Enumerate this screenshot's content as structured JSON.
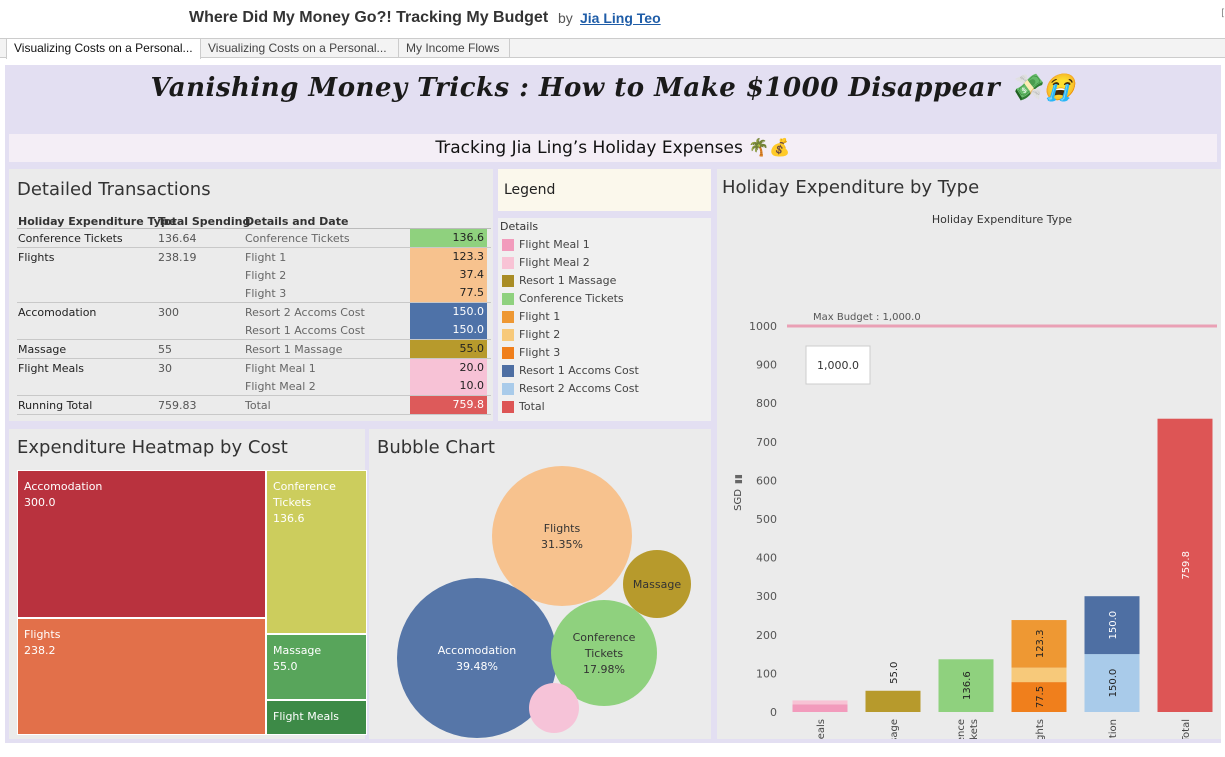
{
  "header": {
    "title": "Where Did My Money Go?! Tracking My Budget",
    "by": "by",
    "author": "Jia Ling Teo",
    "corner": "["
  },
  "tabs": [
    {
      "label": "Visualizing Costs on a Personal..."
    },
    {
      "label": "Visualizing Costs on a Personal..."
    },
    {
      "label": "My Income Flows"
    }
  ],
  "dashboard": {
    "title": "Vanishing Money Tricks : How to Make $1000 Disappear 💸😭",
    "subtitle": "Tracking Jia Ling’s Holiday Expenses 🌴💰"
  },
  "transactions": {
    "title": "Detailed Transactions",
    "headers": [
      "Holiday Expenditure Type",
      "Total Spending",
      "Details and Date"
    ],
    "groups": [
      {
        "type": "Conference Tickets",
        "total": "136.64",
        "rows": [
          {
            "detail": "Conference Tickets",
            "value": "136.6",
            "color": "#8fd17e"
          }
        ]
      },
      {
        "type": "Flights",
        "total": "238.19",
        "rows": [
          {
            "detail": "Flight 1",
            "value": "123.3",
            "color": "#f7c28e"
          },
          {
            "detail": "Flight 2",
            "value": "37.4",
            "color": "#f7c28e"
          },
          {
            "detail": "Flight 3",
            "value": "77.5",
            "color": "#f7c28e"
          }
        ]
      },
      {
        "type": "Accomodation",
        "total": "300",
        "rows": [
          {
            "detail": "Resort 2 Accoms Cost",
            "value": "150.0",
            "color": "#4e72a8"
          },
          {
            "detail": "Resort 1 Accoms Cost",
            "value": "150.0",
            "color": "#4e72a8"
          }
        ]
      },
      {
        "type": "Massage",
        "total": "55",
        "rows": [
          {
            "detail": "Resort 1 Massage",
            "value": "55.0",
            "color": "#b79a2c"
          }
        ]
      },
      {
        "type": "Flight Meals",
        "total": "30",
        "rows": [
          {
            "detail": "Flight Meal 1",
            "value": "20.0",
            "color": "#f7c2d6"
          },
          {
            "detail": "Flight Meal 2",
            "value": "10.0",
            "color": "#f7c2d6"
          }
        ]
      },
      {
        "type": "Running Total",
        "total": "759.83",
        "rows": [
          {
            "detail": "Total",
            "value": "759.8",
            "color": "#dd5a5a"
          }
        ]
      }
    ]
  },
  "legend": {
    "title": "Legend",
    "subtitle": "Details",
    "items": [
      {
        "label": "Flight Meal 1",
        "color": "#f29bbc"
      },
      {
        "label": "Flight Meal 2",
        "color": "#f8c3d5"
      },
      {
        "label": "Resort 1 Massage",
        "color": "#a98c25"
      },
      {
        "label": "Conference Tickets",
        "color": "#8fd17e"
      },
      {
        "label": "Flight 1",
        "color": "#ee9833"
      },
      {
        "label": "Flight 2",
        "color": "#f7c97a"
      },
      {
        "label": "Flight 3",
        "color": "#f07f1c"
      },
      {
        "label": "Resort 1 Accoms Cost",
        "color": "#4e6fa3"
      },
      {
        "label": "Resort 2 Accoms Cost",
        "color": "#a9cbea"
      },
      {
        "label": "Total",
        "color": "#dd5555"
      }
    ]
  },
  "heatmap": {
    "title": "Expenditure Heatmap by Cost",
    "cells": [
      {
        "label": "Accomodation",
        "value": "300.0",
        "color": "#b9323e"
      },
      {
        "label": "Conference Tickets",
        "value": "136.6",
        "color": "#cccd5d"
      },
      {
        "label": "Flights",
        "value": "238.2",
        "color": "#e2704a"
      },
      {
        "label": "Massage",
        "value": "55.0",
        "color": "#58a55b"
      },
      {
        "label": "Flight Meals",
        "value": "",
        "color": "#3d8a47"
      }
    ]
  },
  "bubble": {
    "title": "Bubble Chart",
    "bubbles": [
      {
        "label": "Flights",
        "pct": "31.35%",
        "color": "#f7c28e",
        "text": "#333"
      },
      {
        "label": "Massage",
        "pct": "",
        "color": "#b79a2c",
        "text": "#333"
      },
      {
        "label": "Accomodation",
        "pct": "39.48%",
        "color": "#5676a8",
        "text": "#fff"
      },
      {
        "label": "Conference Tickets",
        "pct": "17.98%",
        "color": "#8fd17e",
        "text": "#333"
      },
      {
        "label": "",
        "pct": "",
        "color": "#f6c3d8",
        "text": "#333"
      }
    ]
  },
  "bar": {
    "title": "Holiday Expenditure by Type",
    "subtitle": "Holiday Expenditure Type",
    "ylabel": "SGD",
    "max_label": "Max Budget : 1,000.0",
    "tooltip": "1,000.0"
  },
  "chart_data": {
    "type": "bar",
    "title": "Holiday Expenditure by Type",
    "xlabel": "Holiday Expenditure Type",
    "ylabel": "SGD",
    "ylim": [
      0,
      1000
    ],
    "yticks": [
      0,
      100,
      200,
      300,
      400,
      500,
      600,
      700,
      800,
      900,
      1000
    ],
    "reference_line": {
      "label": "Max Budget : 1,000.0",
      "value": 1000
    },
    "categories": [
      "Flight Meals",
      "Massage",
      "Conference Tickets",
      "Flights",
      "Accomodation",
      "Running Total"
    ],
    "stacks": [
      [
        {
          "name": "Flight Meal 1",
          "value": 20.0,
          "color": "#f29bbc",
          "label": ""
        },
        {
          "name": "Flight Meal 2",
          "value": 10.0,
          "color": "#f8c3d5",
          "label": ""
        }
      ],
      [
        {
          "name": "Resort 1 Massage",
          "value": 55.0,
          "color": "#b79a2c",
          "label": "55.0"
        }
      ],
      [
        {
          "name": "Conference Tickets",
          "value": 136.6,
          "color": "#8fd17e",
          "label": "136.6"
        }
      ],
      [
        {
          "name": "Flight 3",
          "value": 77.5,
          "color": "#f07f1c",
          "label": "77.5"
        },
        {
          "name": "Flight 2",
          "value": 37.4,
          "color": "#f7c97a",
          "label": ""
        },
        {
          "name": "Flight 1",
          "value": 123.3,
          "color": "#ee9833",
          "label": "123.3"
        }
      ],
      [
        {
          "name": "Resort 2 Accoms Cost",
          "value": 150.0,
          "color": "#a9cbea",
          "label": "150.0"
        },
        {
          "name": "Resort 1 Accoms Cost",
          "value": 150.0,
          "color": "#4e6fa3",
          "label": "150.0"
        }
      ],
      [
        {
          "name": "Total",
          "value": 759.8,
          "color": "#dd5555",
          "label": "759.8"
        }
      ]
    ]
  }
}
